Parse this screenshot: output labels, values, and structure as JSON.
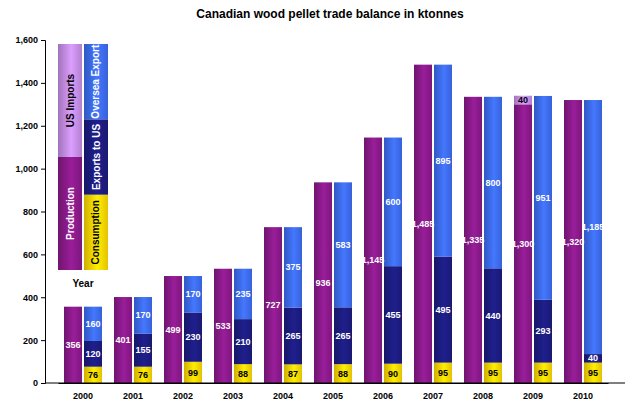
{
  "chart_data": {
    "type": "bar",
    "title": "Canadian wood pellet trade balance in ktonnes",
    "xlabel": "Year",
    "categories": [
      "2000",
      "2001",
      "2002",
      "2003",
      "2004",
      "2005",
      "2006",
      "2007",
      "2008",
      "2009",
      "2010"
    ],
    "stacked": true,
    "data_labels": true,
    "grid": false,
    "ylim": [
      0,
      1600
    ],
    "yticks": [
      0,
      200,
      400,
      600,
      800,
      {
        "value": 1000,
        "label": "1,000"
      },
      {
        "value": 1200,
        "label": "1,200"
      },
      {
        "value": 1400,
        "label": "1,400"
      },
      {
        "value": 1600,
        "label": "1,600"
      }
    ],
    "stacks": [
      {
        "series": [
          {
            "name": "Production",
            "color": "#8a1a8a",
            "values": [
              356,
              401,
              499,
              533,
              727,
              936,
              1145,
              1485,
              1335,
              1300,
              1320
            ],
            "value_labels": [
              "356",
              "401",
              "499",
              "533",
              "727",
              "936",
              "1,145",
              "1,485",
              "1,335",
              "1,300",
              "1,320"
            ]
          },
          {
            "name": "US Imports",
            "color": "#c68ee8",
            "values": [
              null,
              null,
              null,
              null,
              null,
              null,
              null,
              null,
              null,
              40,
              null
            ]
          }
        ]
      },
      {
        "series": [
          {
            "name": "Consumption",
            "color": "#ffd700",
            "values": [
              76,
              76,
              99,
              88,
              87,
              88,
              90,
              95,
              95,
              95,
              95
            ]
          },
          {
            "name": "Exports to US",
            "color": "#1c1c80",
            "values": [
              120,
              155,
              230,
              210,
              265,
              265,
              455,
              495,
              440,
              293,
              40
            ]
          },
          {
            "name": "Oversea Export",
            "color": "#3d6cf2",
            "values": [
              160,
              170,
              170,
              235,
              375,
              583,
              600,
              895,
              800,
              951,
              1185
            ],
            "value_labels": [
              "160",
              "170",
              "170",
              "235",
              "375",
              "583",
              "600",
              "895",
              "800",
              "951",
              "1,185"
            ]
          }
        ]
      }
    ]
  }
}
